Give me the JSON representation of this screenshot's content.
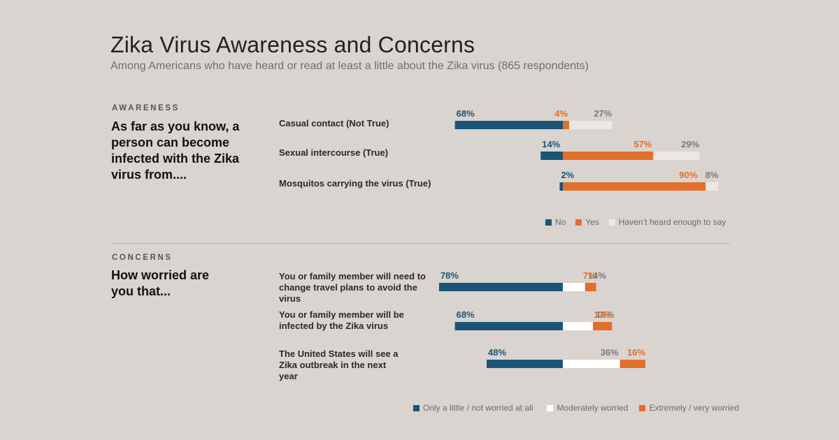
{
  "header": {
    "title": "Zika Virus Awareness and Concerns",
    "subtitle": "Among Americans who have heard or read at least a little about the Zika virus (865 respondents)"
  },
  "colors": {
    "navy": "#1a5577",
    "orange": "#e36f2c",
    "light": "#ebe8e4",
    "white": "#ffffff",
    "grey_label": "#7a7a7a"
  },
  "awareness": {
    "section_label": "AWARENESS",
    "question": "As far as you know, a person can become infected with the Zika virus from....",
    "legend": [
      "No",
      "Yes",
      "Haven’t heard enough to say"
    ]
  },
  "concerns": {
    "section_label": "CONCERNS",
    "question": "How worried are you that...",
    "legend": [
      "Only a little / not worried at all",
      "Moderately worried",
      "Extremely / very worried"
    ]
  },
  "chart_data": [
    {
      "type": "bar",
      "orientation": "horizontal-diverging",
      "categories": [
        "Casual contact (Not True)",
        "Sexual intercourse (True)",
        "Mosquitos carrying the virus (True)"
      ],
      "series": [
        {
          "name": "No",
          "values": [
            68,
            14,
            2
          ],
          "color": "#1a5577",
          "side": "left"
        },
        {
          "name": "Yes",
          "values": [
            4,
            57,
            90
          ],
          "color": "#e36f2c",
          "side": "right"
        },
        {
          "name": "Haven’t heard enough to say",
          "values": [
            27,
            29,
            8
          ],
          "color": "#ebe8e4",
          "side": "right"
        }
      ],
      "labels": [
        [
          "68%",
          "4%",
          "27%"
        ],
        [
          "14%",
          "57%",
          "29%"
        ],
        [
          "2%",
          "90%",
          "8%"
        ]
      ],
      "legend_placement": "bottom-right"
    },
    {
      "type": "bar",
      "orientation": "horizontal-diverging",
      "categories": [
        "You or family member will need to change travel plans to avoid the virus",
        "You or family member will be infected by the Zika virus",
        "The United States will see a Zika outbreak in the next year"
      ],
      "series": [
        {
          "name": "Only a little / not worried at all",
          "values": [
            78,
            68,
            48
          ],
          "color": "#1a5577",
          "side": "left"
        },
        {
          "name": "Moderately worried",
          "values": [
            14,
            19,
            36
          ],
          "color": "#ffffff",
          "side": "right"
        },
        {
          "name": "Extremely / very worried",
          "values": [
            7,
            12,
            16
          ],
          "color": "#e36f2c",
          "side": "right"
        }
      ],
      "labels": [
        [
          "78%",
          "14%",
          "7%"
        ],
        [
          "68%",
          "19%",
          "12%"
        ],
        [
          "48%",
          "36%",
          "16%"
        ]
      ],
      "legend_placement": "bottom-right"
    }
  ]
}
